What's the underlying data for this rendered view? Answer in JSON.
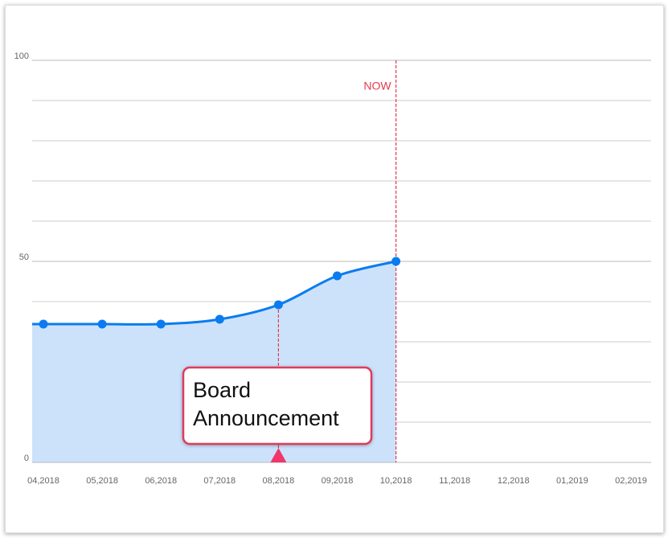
{
  "chart_data": {
    "type": "area",
    "categories": [
      "04,2018",
      "05,2018",
      "06,2018",
      "07,2018",
      "08,2018",
      "09,2018",
      "10,2018",
      "11,2018",
      "12,2018",
      "01,2019",
      "02,2019"
    ],
    "values": [
      34.4,
      34.4,
      34.4,
      35.6,
      39.2,
      46.4,
      50,
      null,
      null,
      null,
      null
    ],
    "color": "#0a7cf0",
    "fill": "#cce2fb",
    "ylim": [
      0,
      100
    ],
    "yticks": [
      0,
      50,
      100
    ],
    "yminor": [
      10,
      20,
      30,
      40,
      60,
      70,
      80,
      90
    ],
    "grid": true,
    "annotations": [
      {
        "label": "NOW",
        "x": "10,2018",
        "color": "#e8384f"
      },
      {
        "label": "Board Announcement",
        "x": "08,2018",
        "color": "#e8384f"
      }
    ]
  }
}
